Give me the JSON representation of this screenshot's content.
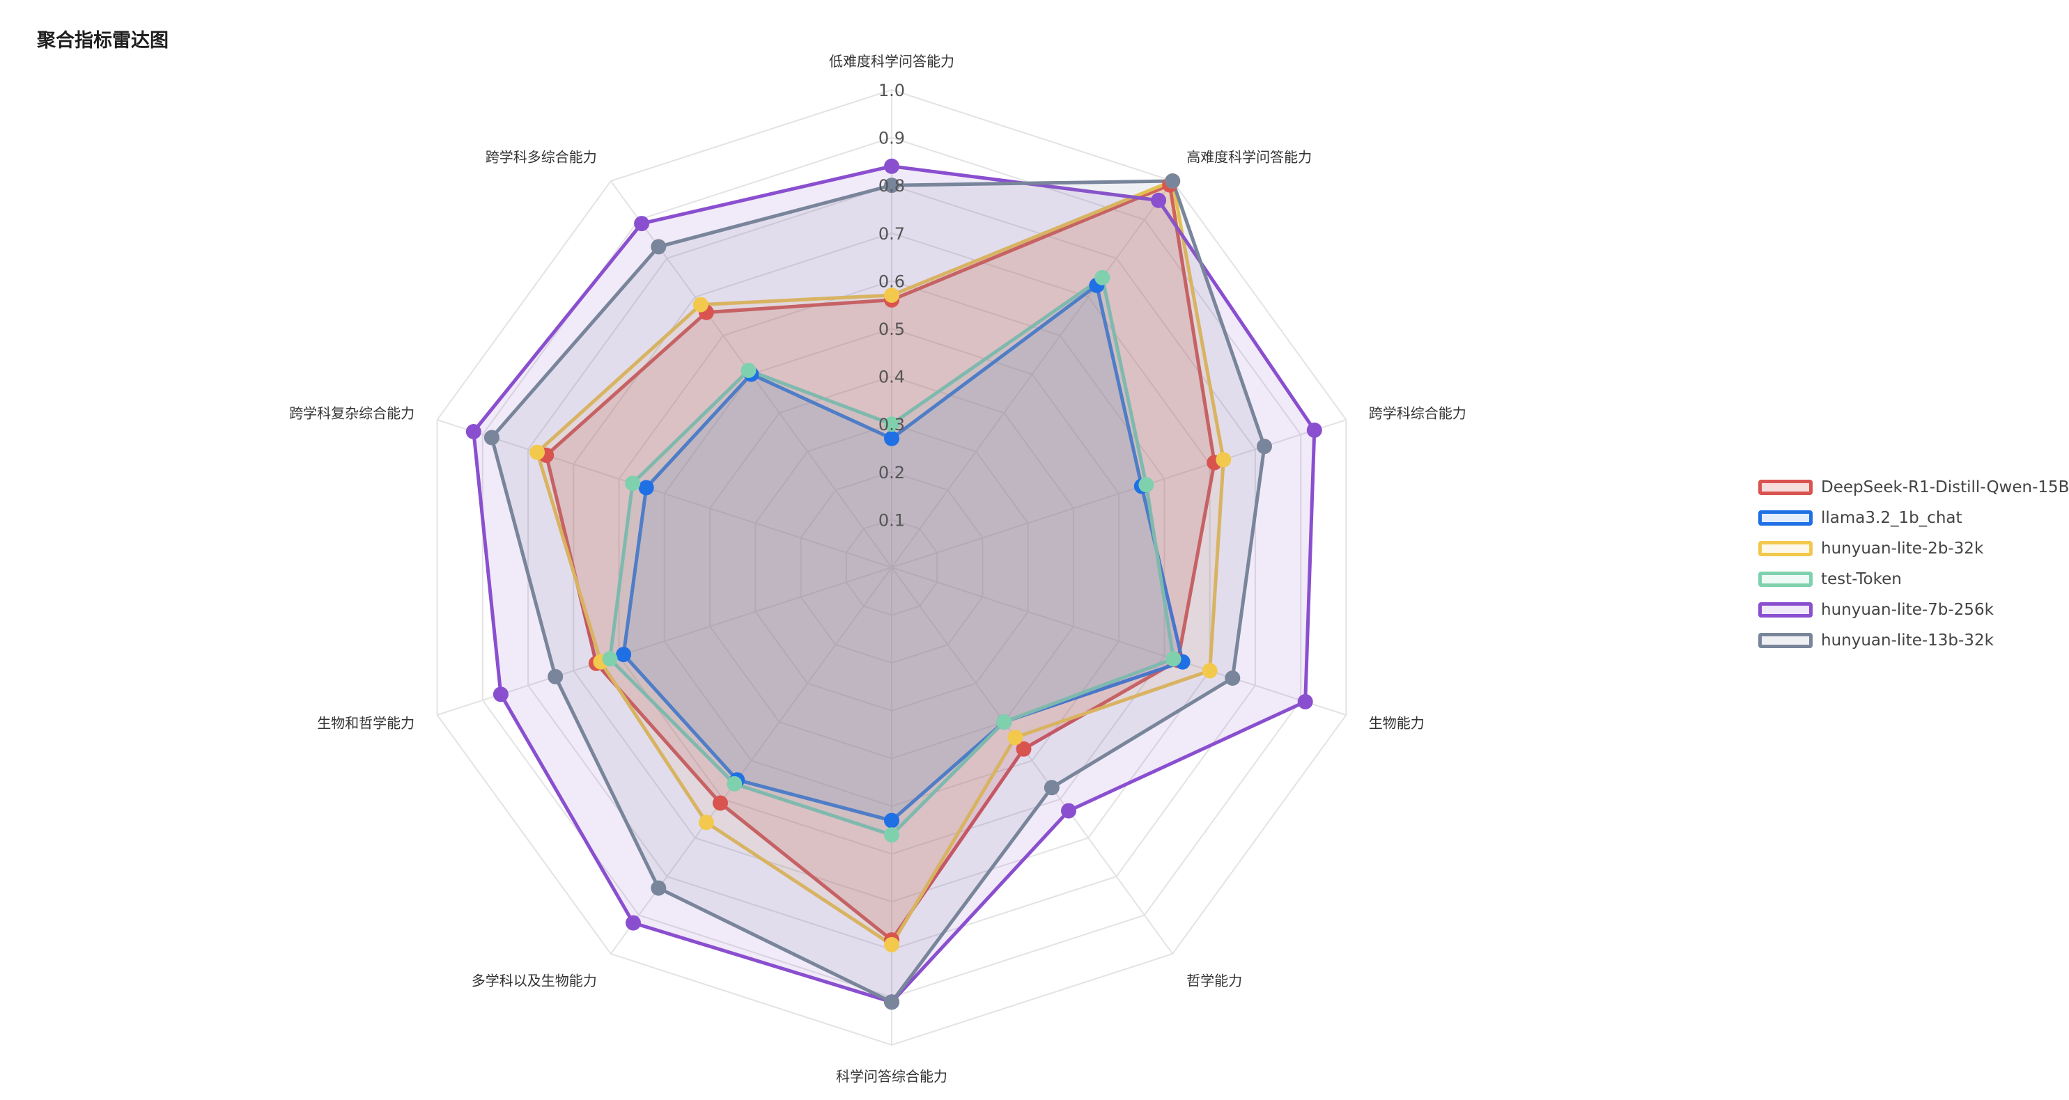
{
  "title": "聚合指标雷达图",
  "chart_data": {
    "type": "radar",
    "title": "聚合指标雷达图",
    "axes": [
      "低难度科学问答能力",
      "高难度科学问答能力",
      "跨学科综合能力",
      "生物能力",
      "哲学能力",
      "科学问答综合能力",
      "多学科以及生物能力",
      "生物和哲学能力",
      "跨学科复杂综合能力",
      "跨学科多综合能力"
    ],
    "ticks": [
      "0.1",
      "0.2",
      "0.3",
      "0.4",
      "0.5",
      "0.6",
      "0.7",
      "0.8",
      "0.9",
      "1.0"
    ],
    "range": [
      0,
      1
    ],
    "grid": true,
    "legend_position": "right",
    "series": [
      {
        "name": "DeepSeek-R1-Distill-Qwen-15B",
        "color": "#d9534f",
        "fill": "rgba(217,83,79,0.20)",
        "values": [
          0.56,
          0.99,
          0.71,
          0.63,
          0.47,
          0.78,
          0.61,
          0.65,
          0.76,
          0.66
        ]
      },
      {
        "name": "llama3.2_1b_chat",
        "color": "#1f6fe5",
        "fill": "rgba(31,111,229,0.12)",
        "values": [
          0.27,
          0.73,
          0.55,
          0.64,
          0.4,
          0.53,
          0.55,
          0.59,
          0.54,
          0.5
        ]
      },
      {
        "name": "hunyuan-lite-2b-32k",
        "color": "#f2c94c",
        "fill": "rgba(242,201,76,0.12)",
        "values": [
          0.57,
          1.0,
          0.73,
          0.7,
          0.44,
          0.79,
          0.66,
          0.64,
          0.78,
          0.68
        ]
      },
      {
        "name": "test-Token",
        "color": "#7fd1ae",
        "fill": "rgba(127,209,174,0.12)",
        "values": [
          0.3,
          0.75,
          0.56,
          0.62,
          0.4,
          0.56,
          0.56,
          0.62,
          0.57,
          0.51
        ]
      },
      {
        "name": "hunyuan-lite-7b-256k",
        "color": "#8a4fcf",
        "fill": "rgba(138,79,207,0.12)",
        "values": [
          0.84,
          0.95,
          0.93,
          0.91,
          0.63,
          0.91,
          0.92,
          0.86,
          0.92,
          0.89
        ]
      },
      {
        "name": "hunyuan-lite-13b-32k",
        "color": "#78859a",
        "fill": "rgba(120,133,154,0.12)",
        "values": [
          0.8,
          1.0,
          0.82,
          0.75,
          0.57,
          0.91,
          0.83,
          0.74,
          0.88,
          0.83
        ]
      }
    ]
  }
}
